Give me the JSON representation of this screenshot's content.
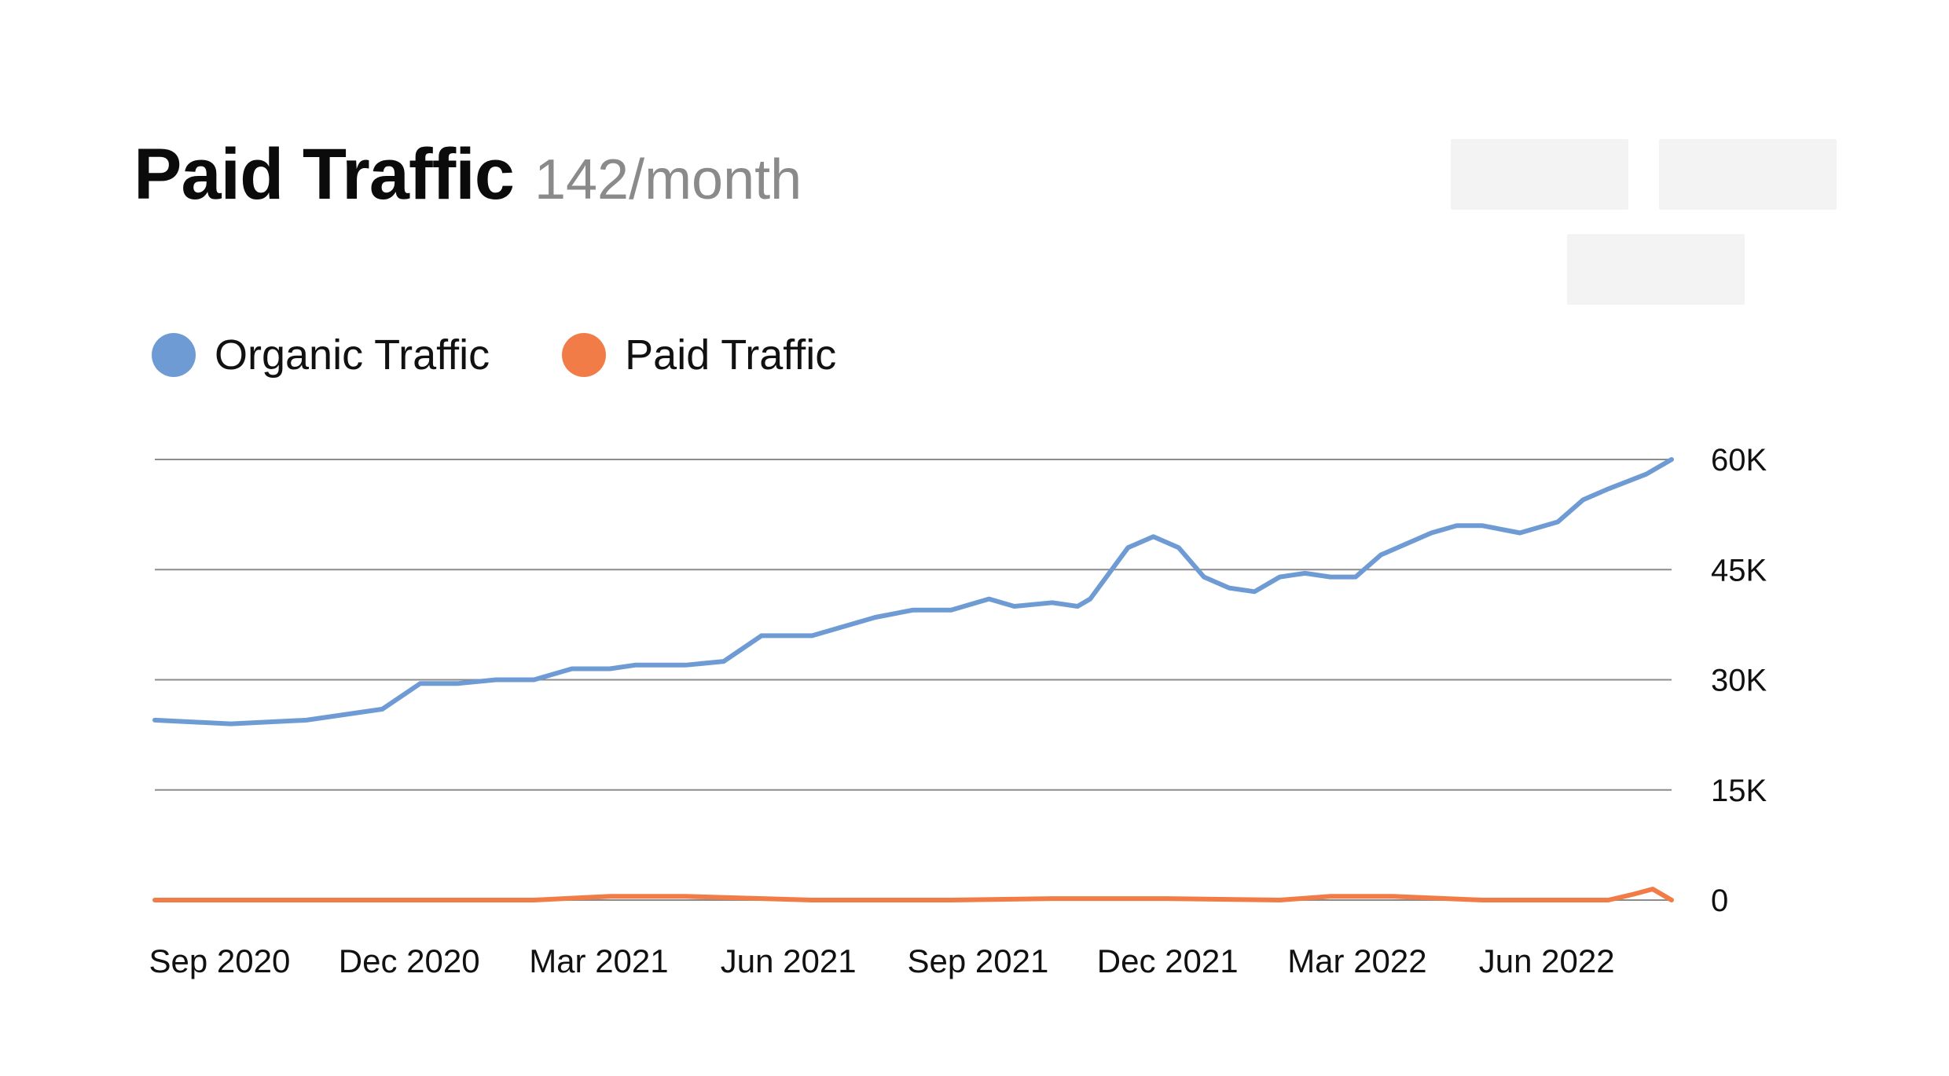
{
  "header": {
    "title": "Paid Traffic",
    "subtitle": "142/month"
  },
  "legend": [
    {
      "label": "Organic Traffic",
      "color": "#6f9bd4"
    },
    {
      "label": "Paid Traffic",
      "color": "#f27c48"
    }
  ],
  "chart_data": {
    "type": "line",
    "title": "Paid Traffic",
    "subtitle": "142/month",
    "xlabel": "",
    "ylabel": "",
    "x_range": [
      "2020-08",
      "2022-07"
    ],
    "x_ticks": [
      "Sep 2020",
      "Dec 2020",
      "Mar 2021",
      "Jun 2021",
      "Sep 2021",
      "Dec 2021",
      "Mar 2022",
      "Jun 2022"
    ],
    "y_ticks": [
      "0",
      "15K",
      "30K",
      "45K",
      "60K"
    ],
    "ylim": [
      0,
      60000
    ],
    "grid": true,
    "legend_position": "top-left",
    "series": [
      {
        "name": "Organic Traffic",
        "color": "#6f9bd4",
        "x": [
          0.0,
          1.2,
          2.4,
          3.6,
          4.2,
          4.8,
          5.4,
          6.0,
          6.6,
          7.2,
          7.6,
          8.4,
          9.0,
          9.6,
          10.4,
          11.4,
          12.0,
          12.6,
          13.2,
          13.6,
          14.2,
          14.6,
          14.8,
          15.1,
          15.4,
          15.8,
          16.2,
          16.6,
          17.0,
          17.4,
          17.8,
          18.2,
          18.6,
          19.0,
          19.4,
          19.8,
          20.2,
          20.6,
          21.0,
          21.6,
          22.2,
          22.6,
          23.0,
          23.6,
          24.0
        ],
        "values": [
          24500,
          24000,
          24500,
          26000,
          29500,
          29500,
          30000,
          30000,
          31500,
          31500,
          32000,
          32000,
          32500,
          36000,
          36000,
          38500,
          39500,
          39500,
          41000,
          40000,
          40500,
          40000,
          41000,
          44500,
          48000,
          49500,
          48000,
          44000,
          42500,
          42000,
          44000,
          44500,
          44000,
          44000,
          47000,
          48500,
          50000,
          51000,
          51000,
          50000,
          51500,
          54500,
          56000,
          58000,
          60000
        ]
      },
      {
        "name": "Paid Traffic",
        "color": "#f27c48",
        "x": [
          0.0,
          3.0,
          6.0,
          7.2,
          8.4,
          10.4,
          12.6,
          14.2,
          16.0,
          17.8,
          18.6,
          19.6,
          21.0,
          22.2,
          23.0,
          23.4,
          23.7,
          24.0
        ],
        "values": [
          0,
          0,
          0,
          500,
          500,
          0,
          0,
          200,
          200,
          0,
          500,
          500,
          0,
          0,
          0,
          800,
          1500,
          0
        ]
      }
    ]
  },
  "placeholders": [
    "",
    "",
    ""
  ]
}
